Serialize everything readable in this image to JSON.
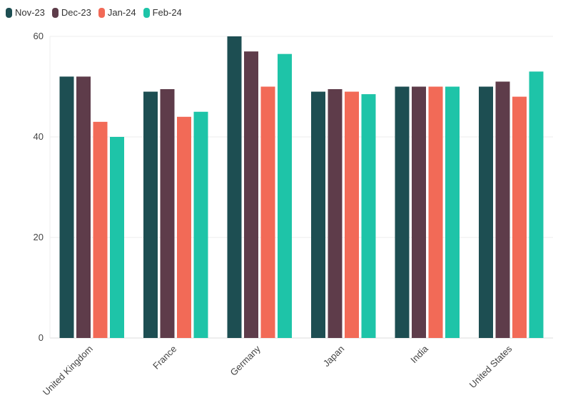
{
  "chart_data": {
    "type": "bar",
    "title": "",
    "xlabel": "",
    "ylabel": "",
    "ylim": [
      0,
      60
    ],
    "yticks": [
      0,
      20,
      40,
      60
    ],
    "grid": true,
    "legend_position": "top-left",
    "categories": [
      "United Kingdom",
      "France",
      "Germany",
      "Japan",
      "India",
      "United States"
    ],
    "series": [
      {
        "name": "Nov-23",
        "color": "#1d4e52",
        "values": [
          52,
          49,
          60,
          49,
          50,
          50
        ]
      },
      {
        "name": "Dec-23",
        "color": "#5e3c4a",
        "values": [
          52,
          49.5,
          57,
          49.5,
          50,
          51
        ]
      },
      {
        "name": "Jan-24",
        "color": "#f26a57",
        "values": [
          43,
          44,
          50,
          49,
          50,
          48
        ]
      },
      {
        "name": "Feb-24",
        "color": "#1ec4a8",
        "values": [
          40,
          45,
          56.5,
          48.5,
          50,
          53
        ]
      }
    ]
  }
}
